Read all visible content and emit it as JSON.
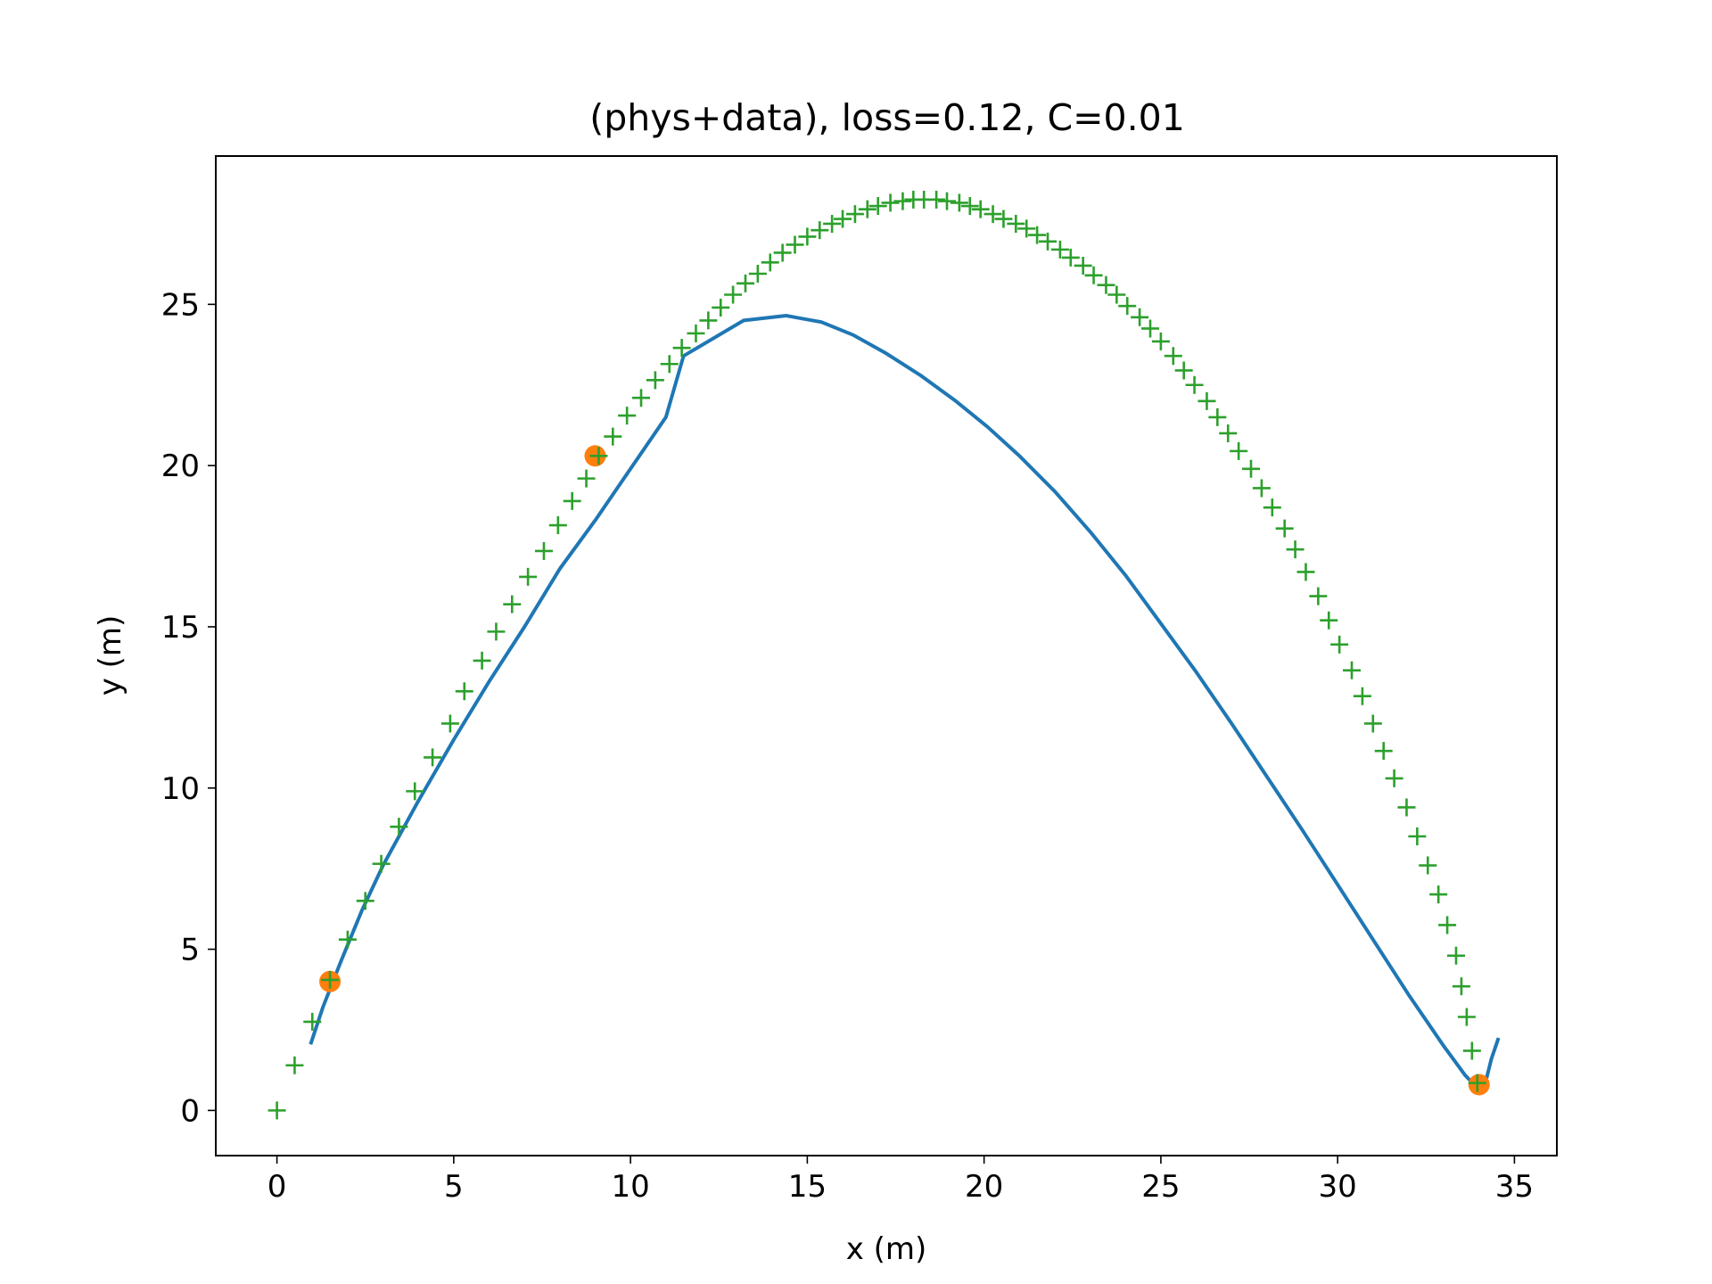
{
  "chart_data": {
    "type": "line",
    "title": "(phys+data), loss=0.12, C=0.01",
    "xlabel": "x (m)",
    "ylabel": "y (m)",
    "xlim": [
      -1.73,
      36.2
    ],
    "ylim": [
      -1.4,
      29.6
    ],
    "xticks": [
      0,
      5,
      10,
      15,
      20,
      25,
      30,
      35
    ],
    "yticks": [
      0,
      5,
      10,
      15,
      20,
      25
    ],
    "xtick_labels": [
      "0",
      "5",
      "10",
      "15",
      "20",
      "25",
      "30",
      "35"
    ],
    "ytick_labels": [
      "0",
      "5",
      "10",
      "15",
      "20",
      "25"
    ],
    "grid": false,
    "legend": "none",
    "colors": {
      "prediction": "#1f77b4",
      "measurements": "#ff7f0e",
      "reference": "#2ca02c"
    },
    "series": [
      {
        "style": "line",
        "color": "#1f77b4",
        "points": [
          [
            0.95,
            2.05
          ],
          [
            1.3,
            3.2
          ],
          [
            1.8,
            4.6
          ],
          [
            2.4,
            6.2
          ],
          [
            3.0,
            7.6
          ],
          [
            4.0,
            9.6
          ],
          [
            5.0,
            11.5
          ],
          [
            6.0,
            13.3
          ],
          [
            7.0,
            15.0
          ],
          [
            8.0,
            16.8
          ],
          [
            9.0,
            18.3
          ],
          [
            10.0,
            19.9
          ],
          [
            11.0,
            21.5
          ],
          [
            11.5,
            23.4
          ],
          [
            13.2,
            24.5
          ],
          [
            14.4,
            24.65
          ],
          [
            15.4,
            24.45
          ],
          [
            16.3,
            24.05
          ],
          [
            17.2,
            23.5
          ],
          [
            18.2,
            22.8
          ],
          [
            19.2,
            22.0
          ],
          [
            20.1,
            21.2
          ],
          [
            21.0,
            20.3
          ],
          [
            22.0,
            19.2
          ],
          [
            23.0,
            17.95
          ],
          [
            24.0,
            16.6
          ],
          [
            25.0,
            15.1
          ],
          [
            26.0,
            13.6
          ],
          [
            27.0,
            12.0
          ],
          [
            28.0,
            10.35
          ],
          [
            29.0,
            8.7
          ],
          [
            30.0,
            7.0
          ],
          [
            31.0,
            5.3
          ],
          [
            32.0,
            3.6
          ],
          [
            33.0,
            2.0
          ],
          [
            33.6,
            1.1
          ],
          [
            33.95,
            0.7
          ],
          [
            34.2,
            0.95
          ],
          [
            34.35,
            1.6
          ],
          [
            34.55,
            2.25
          ]
        ]
      },
      {
        "style": "scatter-circle",
        "color": "#ff7f0e",
        "points": [
          [
            1.5,
            4.0
          ],
          [
            9.0,
            20.3
          ],
          [
            34.0,
            0.8
          ]
        ]
      },
      {
        "style": "scatter-plus",
        "color": "#2ca02c",
        "points": [
          [
            0.0,
            0.0
          ],
          [
            0.5,
            1.4
          ],
          [
            1.0,
            2.75
          ],
          [
            1.5,
            4.05
          ],
          [
            2.0,
            5.3
          ],
          [
            2.5,
            6.5
          ],
          [
            2.95,
            7.65
          ],
          [
            3.45,
            8.8
          ],
          [
            3.9,
            9.9
          ],
          [
            4.4,
            10.95
          ],
          [
            4.9,
            12.0
          ],
          [
            5.3,
            13.0
          ],
          [
            5.8,
            13.95
          ],
          [
            6.2,
            14.85
          ],
          [
            6.65,
            15.7
          ],
          [
            7.1,
            16.55
          ],
          [
            7.55,
            17.35
          ],
          [
            7.95,
            18.15
          ],
          [
            8.35,
            18.9
          ],
          [
            8.75,
            19.6
          ],
          [
            9.1,
            20.3
          ],
          [
            9.5,
            20.9
          ],
          [
            9.9,
            21.55
          ],
          [
            10.3,
            22.1
          ],
          [
            10.7,
            22.65
          ],
          [
            11.1,
            23.15
          ],
          [
            11.45,
            23.65
          ],
          [
            11.85,
            24.1
          ],
          [
            12.2,
            24.5
          ],
          [
            12.55,
            24.9
          ],
          [
            12.9,
            25.3
          ],
          [
            13.25,
            25.65
          ],
          [
            13.6,
            25.95
          ],
          [
            13.95,
            26.3
          ],
          [
            14.3,
            26.6
          ],
          [
            14.65,
            26.85
          ],
          [
            15.0,
            27.1
          ],
          [
            15.35,
            27.3
          ],
          [
            15.7,
            27.5
          ],
          [
            16.0,
            27.65
          ],
          [
            16.35,
            27.8
          ],
          [
            16.7,
            27.95
          ],
          [
            17.0,
            28.05
          ],
          [
            17.35,
            28.15
          ],
          [
            17.7,
            28.2
          ],
          [
            18.0,
            28.25
          ],
          [
            18.3,
            28.25
          ],
          [
            18.65,
            28.25
          ],
          [
            18.95,
            28.2
          ],
          [
            19.3,
            28.15
          ],
          [
            19.6,
            28.05
          ],
          [
            19.9,
            27.95
          ],
          [
            20.25,
            27.8
          ],
          [
            20.55,
            27.65
          ],
          [
            20.9,
            27.5
          ],
          [
            21.2,
            27.35
          ],
          [
            21.5,
            27.15
          ],
          [
            21.8,
            26.95
          ],
          [
            22.15,
            26.7
          ],
          [
            22.45,
            26.45
          ],
          [
            22.8,
            26.2
          ],
          [
            23.1,
            25.9
          ],
          [
            23.45,
            25.6
          ],
          [
            23.75,
            25.3
          ],
          [
            24.05,
            24.95
          ],
          [
            24.4,
            24.6
          ],
          [
            24.7,
            24.25
          ],
          [
            25.0,
            23.85
          ],
          [
            25.35,
            23.4
          ],
          [
            25.65,
            22.95
          ],
          [
            25.95,
            22.5
          ],
          [
            26.3,
            22.0
          ],
          [
            26.6,
            21.5
          ],
          [
            26.9,
            21.0
          ],
          [
            27.2,
            20.45
          ],
          [
            27.55,
            19.9
          ],
          [
            27.85,
            19.3
          ],
          [
            28.15,
            18.7
          ],
          [
            28.5,
            18.05
          ],
          [
            28.8,
            17.4
          ],
          [
            29.1,
            16.7
          ],
          [
            29.45,
            15.95
          ],
          [
            29.75,
            15.2
          ],
          [
            30.05,
            14.45
          ],
          [
            30.4,
            13.65
          ],
          [
            30.7,
            12.85
          ],
          [
            31.0,
            12.0
          ],
          [
            31.3,
            11.15
          ],
          [
            31.6,
            10.3
          ],
          [
            31.95,
            9.4
          ],
          [
            32.25,
            8.5
          ],
          [
            32.55,
            7.6
          ],
          [
            32.85,
            6.7
          ],
          [
            33.1,
            5.75
          ],
          [
            33.35,
            4.8
          ],
          [
            33.5,
            3.85
          ],
          [
            33.65,
            2.9
          ],
          [
            33.8,
            1.85
          ],
          [
            33.95,
            0.85
          ]
        ]
      }
    ]
  }
}
